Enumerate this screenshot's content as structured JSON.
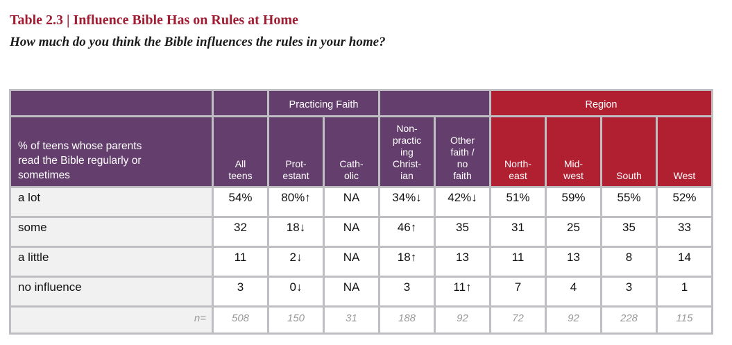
{
  "page": {
    "title": "Table 2.3 | Influence Bible Has on Rules at Home",
    "subtitle": "How much do you think the Bible influences the rules in your home?"
  },
  "colors": {
    "purple": "#643e6c",
    "red": "#b02031",
    "title": "#a01d33",
    "border": "#bfbfc3",
    "label-bg": "#f1f1f1",
    "muted": "#9a9a9a"
  },
  "table": {
    "corner_label": "% of teens whose parents\nread the Bible regularly or\nsometimes",
    "group_headers": {
      "practicing_faith": "Practicing Faith",
      "region": "Region"
    },
    "columns": [
      "All\nteens",
      "Prot-\nestant",
      "Cath-\nolic",
      "Non-\npractic\ning\nChrist-\nian",
      "Other\nfaith /\nno\nfaith",
      "North-\neast",
      "Mid-\nwest",
      "South",
      "West"
    ],
    "rows": [
      {
        "label": "a lot",
        "values": [
          "54%",
          "80%↑",
          "NA",
          "34%↓",
          "42%↓",
          "51%",
          "59%",
          "55%",
          "52%"
        ]
      },
      {
        "label": "some",
        "values": [
          "32",
          "18↓",
          "NA",
          "46↑",
          "35",
          "31",
          "25",
          "35",
          "33"
        ]
      },
      {
        "label": "a little",
        "values": [
          "11",
          "2↓",
          "NA",
          "18↑",
          "13",
          "11",
          "13",
          "8",
          "14"
        ]
      },
      {
        "label": "no influence",
        "values": [
          "3",
          "0↓",
          "NA",
          "3",
          "11↑",
          "7",
          "4",
          "3",
          "1"
        ]
      }
    ],
    "n_row": {
      "label": "n=",
      "values": [
        "508",
        "150",
        "31",
        "188",
        "92",
        "72",
        "92",
        "228",
        "115"
      ]
    }
  }
}
